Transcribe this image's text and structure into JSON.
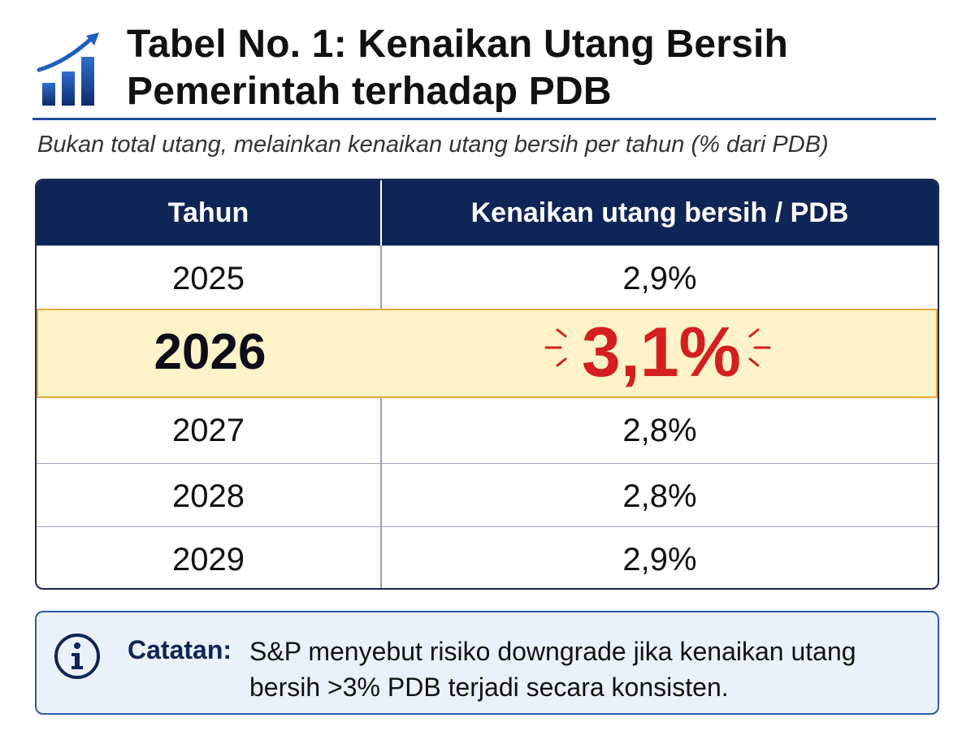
{
  "header": {
    "title_line1": "Tabel No. 1: Kenaikan Utang Bersih",
    "title_line2": "Pemerintah terhadap PDB",
    "icon": "bar-chart-growth-icon"
  },
  "subtitle": "Bukan total utang, melainkan kenaikan utang bersih per tahun (% dari PDB)",
  "table": {
    "headers": [
      "Tahun",
      "Kenaikan utang bersih / PDB"
    ],
    "rows": [
      {
        "year": "2025",
        "value": "2,9%"
      },
      {
        "year": "2026",
        "value": "3,1%"
      },
      {
        "year": "2027",
        "value": "2,8%"
      },
      {
        "year": "2028",
        "value": "2,8%"
      },
      {
        "year": "2029",
        "value": "2,9%"
      }
    ],
    "highlighted_year": "2026"
  },
  "note": {
    "icon": "info-icon",
    "label": "Catatan:",
    "text": "S&P menyebut risiko downgrade jika kenaikan utang bersih >3% PDB terjadi secara konsisten."
  },
  "colors": {
    "header_bg": "#0f2557",
    "highlight_bg": "#fdf2c8",
    "highlight_border": "#e9a93a",
    "highlight_value": "#d31f1f",
    "accent_blue": "#1f4f9c"
  }
}
